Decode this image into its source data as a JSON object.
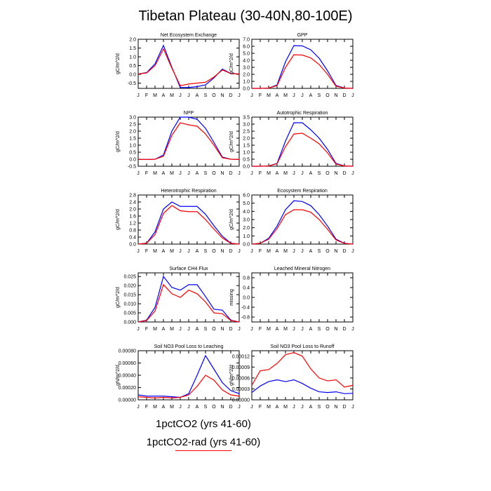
{
  "title": "Tibetan Plateau (30-40N,80-100E)",
  "legend": {
    "entries": [
      "1pctCO2 (yrs 41-60)",
      "1pctCO2-rad (yrs 41-60)"
    ],
    "colors": [
      "#0000ff",
      "#ff0000"
    ]
  },
  "chart_data": [
    {
      "type": "line",
      "title": "Net Ecosystem Exchange",
      "ylabel": "gC/m^2/d",
      "categories": [
        "J",
        "F",
        "M",
        "A",
        "M",
        "J",
        "J",
        "A",
        "S",
        "O",
        "N",
        "D",
        "J"
      ],
      "ylim": [
        -0.8,
        2.0
      ],
      "yticks": [
        "2.0",
        "1.5",
        "1.0",
        "0.5",
        "0.0",
        "-0.5"
      ],
      "ytick_values": [
        2.0,
        1.5,
        1.0,
        0.5,
        0.0,
        -0.5
      ],
      "series": [
        {
          "color": "#0000ff",
          "values": [
            0.02,
            0.1,
            0.6,
            1.65,
            0.4,
            -0.75,
            -0.75,
            -0.7,
            -0.6,
            -0.2,
            0.3,
            0.05,
            0.02
          ]
        },
        {
          "color": "#ff0000",
          "values": [
            0.02,
            0.08,
            0.5,
            1.45,
            0.35,
            -0.65,
            -0.55,
            -0.5,
            -0.45,
            -0.15,
            0.25,
            0.04,
            0.02
          ]
        }
      ]
    },
    {
      "type": "line",
      "title": "GPP",
      "ylabel": "gC/m^2/d",
      "categories": [
        "J",
        "F",
        "M",
        "A",
        "M",
        "J",
        "J",
        "A",
        "S",
        "O",
        "N",
        "D",
        "J"
      ],
      "ylim": [
        0,
        7.0
      ],
      "yticks": [
        "7.0",
        "6.0",
        "5.0",
        "4.0",
        "3.0",
        "2.0",
        "1.0",
        "0.0"
      ],
      "ytick_values": [
        7,
        6,
        5,
        4,
        3,
        2,
        1,
        0
      ],
      "series": [
        {
          "color": "#0000ff",
          "values": [
            0.0,
            0.0,
            0.05,
            0.5,
            3.8,
            6.1,
            6.05,
            5.5,
            4.3,
            2.5,
            0.4,
            0.05,
            0.0
          ]
        },
        {
          "color": "#ff0000",
          "values": [
            0.0,
            0.0,
            0.05,
            0.4,
            3.0,
            4.8,
            4.75,
            4.35,
            3.4,
            2.0,
            0.3,
            0.05,
            0.0
          ]
        }
      ]
    },
    {
      "type": "line",
      "title": "NPP",
      "ylabel": "gC/m^2/d",
      "categories": [
        "J",
        "F",
        "M",
        "A",
        "M",
        "J",
        "J",
        "A",
        "S",
        "O",
        "N",
        "D",
        "J"
      ],
      "ylim": [
        -0.5,
        3.0
      ],
      "yticks": [
        "3.0",
        "2.5",
        "2.0",
        "1.5",
        "1.0",
        "0.5",
        "0.0",
        "-0.5"
      ],
      "ytick_values": [
        3,
        2.5,
        2,
        1.5,
        1,
        0.5,
        0,
        -0.5
      ],
      "series": [
        {
          "color": "#0000ff",
          "values": [
            -0.02,
            -0.02,
            0.0,
            0.3,
            2.0,
            3.0,
            3.0,
            2.85,
            2.2,
            1.2,
            0.15,
            0.0,
            -0.02
          ]
        },
        {
          "color": "#ff0000",
          "values": [
            -0.02,
            -0.02,
            0.0,
            0.22,
            1.7,
            2.6,
            2.45,
            2.35,
            1.8,
            1.0,
            0.1,
            0.0,
            -0.02
          ]
        }
      ]
    },
    {
      "type": "line",
      "title": "Autotrophic Respiration",
      "ylabel": "gC/m^2/d",
      "categories": [
        "J",
        "F",
        "M",
        "A",
        "M",
        "J",
        "J",
        "A",
        "S",
        "O",
        "N",
        "D",
        "J"
      ],
      "ylim": [
        0,
        3.5
      ],
      "yticks": [
        "3.5",
        "3.0",
        "2.5",
        "2.0",
        "1.5",
        "1.0",
        "0.5",
        "0.0"
      ],
      "ytick_values": [
        3.5,
        3,
        2.5,
        2,
        1.5,
        1,
        0.5,
        0
      ],
      "series": [
        {
          "color": "#0000ff",
          "values": [
            0.0,
            0.0,
            0.02,
            0.2,
            1.8,
            3.1,
            3.1,
            2.6,
            2.0,
            1.2,
            0.2,
            0.02,
            0.0
          ]
        },
        {
          "color": "#ff0000",
          "values": [
            0.0,
            0.0,
            0.02,
            0.18,
            1.4,
            2.3,
            2.35,
            2.0,
            1.6,
            0.95,
            0.15,
            0.02,
            0.0
          ]
        }
      ]
    },
    {
      "type": "line",
      "title": "Heterotrophic Respiration",
      "ylabel": "gC/m^2/d",
      "categories": [
        "J",
        "F",
        "M",
        "A",
        "M",
        "J",
        "J",
        "A",
        "S",
        "O",
        "N",
        "D",
        "J"
      ],
      "ylim": [
        0,
        2.8
      ],
      "yticks": [
        "2.8",
        "2.4",
        "2.0",
        "1.6",
        "1.2",
        "0.8",
        "0.4",
        "0.0"
      ],
      "ytick_values": [
        2.8,
        2.4,
        2.0,
        1.6,
        1.2,
        0.8,
        0.4,
        0.0
      ],
      "series": [
        {
          "color": "#0000ff",
          "values": [
            0.0,
            0.05,
            0.7,
            2.0,
            2.4,
            2.15,
            2.15,
            2.15,
            1.7,
            1.05,
            0.45,
            0.05,
            0.0
          ]
        },
        {
          "color": "#ff0000",
          "values": [
            0.0,
            0.05,
            0.55,
            1.75,
            2.2,
            1.9,
            1.85,
            1.85,
            1.4,
            0.85,
            0.35,
            0.04,
            0.0
          ]
        }
      ]
    },
    {
      "type": "line",
      "title": "Ecosystem Respiration",
      "ylabel": "gC/m^2/d",
      "categories": [
        "J",
        "F",
        "M",
        "A",
        "M",
        "J",
        "J",
        "A",
        "S",
        "O",
        "N",
        "D",
        "J"
      ],
      "ylim": [
        0,
        6.0
      ],
      "yticks": [
        "6.0",
        "5.0",
        "4.0",
        "3.0",
        "2.0",
        "1.0",
        "0.0"
      ],
      "ytick_values": [
        6,
        5,
        4,
        3,
        2,
        1,
        0
      ],
      "series": [
        {
          "color": "#0000ff",
          "values": [
            0.0,
            0.1,
            0.7,
            2.2,
            4.2,
            5.3,
            5.2,
            4.7,
            3.6,
            2.2,
            0.6,
            0.1,
            0.0
          ]
        },
        {
          "color": "#ff0000",
          "values": [
            0.0,
            0.1,
            0.6,
            1.9,
            3.6,
            4.2,
            4.2,
            3.9,
            3.0,
            1.8,
            0.5,
            0.08,
            0.0
          ]
        }
      ]
    },
    {
      "type": "line",
      "title": "Surface CH4 Flux",
      "ylabel": "gC/m^2/d",
      "categories": [
        "J",
        "F",
        "M",
        "A",
        "M",
        "J",
        "J",
        "A",
        "S",
        "O",
        "N",
        "D",
        "J"
      ],
      "ylim": [
        0,
        0.027
      ],
      "yticks": [
        "0.025",
        "0.020",
        "0.015",
        "0.010",
        "0.005",
        "0.000"
      ],
      "ytick_values": [
        0.025,
        0.02,
        0.015,
        0.01,
        0.005,
        0.0
      ],
      "series": [
        {
          "color": "#0000ff",
          "values": [
            0.0,
            0.001,
            0.008,
            0.025,
            0.019,
            0.0175,
            0.0205,
            0.0205,
            0.014,
            0.007,
            0.0065,
            0.001,
            0.0
          ]
        },
        {
          "color": "#ff0000",
          "values": [
            0.0,
            0.0008,
            0.006,
            0.0205,
            0.0155,
            0.0135,
            0.0175,
            0.0155,
            0.011,
            0.005,
            0.0045,
            0.0008,
            0.0
          ]
        }
      ]
    },
    {
      "type": "line",
      "title": "Leached Mineral Nitrogen",
      "ylabel": "missing",
      "categories": [
        "J",
        "F",
        "M",
        "A",
        "M",
        "J",
        "J",
        "A",
        "S",
        "O",
        "N",
        "D",
        "J"
      ],
      "ylim": [
        -1.0,
        1.0
      ],
      "yticks": [
        "0.8",
        "0.4",
        "0.0",
        "-0.4",
        "-0.8"
      ],
      "ytick_values": [
        0.8,
        0.4,
        0.0,
        -0.4,
        -0.8
      ],
      "series": []
    },
    {
      "type": "line",
      "title": "Soil NO3 Pool Loss to Leaching",
      "ylabel": "gN/m^2/d",
      "categories": [
        "J",
        "F",
        "M",
        "A",
        "M",
        "J",
        "J",
        "A",
        "S",
        "O",
        "N",
        "D",
        "J"
      ],
      "ylim": [
        0,
        0.0008
      ],
      "yticks": [
        "0.00080",
        "0.00060",
        "0.00040",
        "0.00020",
        "0.00000"
      ],
      "ytick_values": [
        0.0008,
        0.0006,
        0.0004,
        0.0002,
        0.0
      ],
      "series": [
        {
          "color": "#0000ff",
          "values": [
            8e-05,
            6e-05,
            6e-05,
            6e-05,
            5e-05,
            4e-05,
            0.0001,
            0.0004,
            0.00072,
            0.0005,
            0.00028,
            0.00015,
            0.0001
          ]
        },
        {
          "color": "#ff0000",
          "values": [
            5e-05,
            4e-05,
            3e-05,
            4e-05,
            3e-05,
            4e-05,
            8e-05,
            0.00022,
            0.0004,
            0.00032,
            0.00016,
            8e-05,
            6e-05
          ]
        }
      ]
    },
    {
      "type": "line",
      "title": "Soil NO3 Pool Loss to Runoff",
      "ylabel": "gN/m^2/d",
      "categories": [
        "J",
        "F",
        "M",
        "A",
        "M",
        "J",
        "J",
        "A",
        "S",
        "O",
        "N",
        "D",
        "J"
      ],
      "ylim": [
        0,
        0.000135
      ],
      "yticks": [
        "0.00012",
        "0.00009",
        "0.00006",
        "0.00003",
        "0.00000"
      ],
      "ytick_values": [
        0.00012,
        9e-05,
        6e-05,
        3e-05,
        0.0
      ],
      "series": [
        {
          "color": "#0000ff",
          "values": [
            2e-05,
            3.8e-05,
            5e-05,
            5.5e-05,
            5e-05,
            5.5e-05,
            4.5e-05,
            3.2e-05,
            2.2e-05,
            2e-05,
            2.2e-05,
            1.7e-05,
            1.8e-05
          ]
        },
        {
          "color": "#ff0000",
          "values": [
            4e-05,
            8e-05,
            8.3e-05,
            0.0001,
            0.000124,
            0.00013,
            0.00012,
            8.5e-05,
            6e-05,
            5.2e-05,
            5.5e-05,
            3.5e-05,
            4e-05
          ]
        }
      ]
    }
  ]
}
